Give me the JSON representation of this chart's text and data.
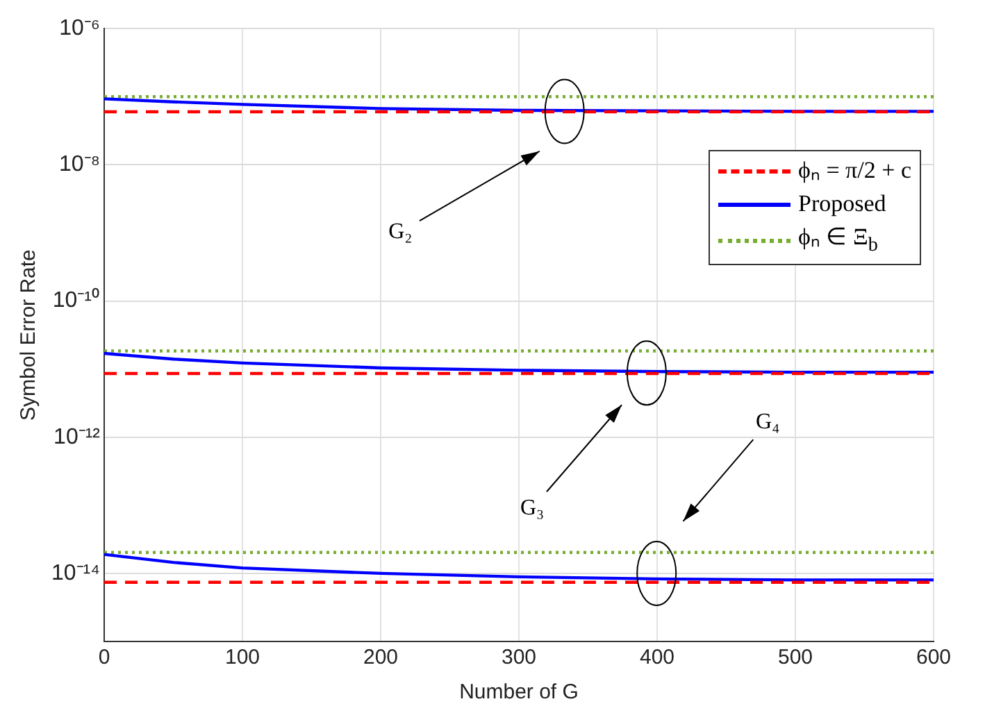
{
  "chart_data": {
    "type": "line",
    "xlabel": "Number of G",
    "ylabel": "Symbol Error Rate",
    "xlim": [
      0,
      600
    ],
    "xticks": [
      0,
      100,
      200,
      300,
      400,
      500,
      600
    ],
    "ylim": [
      1e-15,
      1e-06
    ],
    "log": "y",
    "yticks": [
      {
        "value": 1e-14,
        "label": "10⁻¹⁴"
      },
      {
        "value": 1e-12,
        "label": "10⁻¹²"
      },
      {
        "value": 1e-10,
        "label": "10⁻¹⁰"
      },
      {
        "value": 1e-08,
        "label": "10⁻⁸"
      },
      {
        "value": 1e-06,
        "label": "10⁻⁶"
      }
    ],
    "grid": true,
    "legend": "top right",
    "marker": "none",
    "series": [
      {
        "name": "ϕₙ = π/2 + c",
        "color": "#ff0000",
        "line_style": "dashed",
        "x": [
          0,
          600
        ],
        "values": [
          6e-08,
          6e-08
        ]
      },
      {
        "name": "Proposed",
        "color": "#0000ff",
        "line_style": "solid",
        "x": [
          0,
          50,
          100,
          200,
          300,
          400,
          500,
          600
        ],
        "values": [
          9.3e-08,
          8.4e-08,
          7.7e-08,
          6.7e-08,
          6.3e-08,
          6.2e-08,
          6.1e-08,
          6.1e-08
        ]
      },
      {
        "name": "ϕₙ ∈ Ξ$_{b}$",
        "color": "#77ac30",
        "line_style": "dotted",
        "x": [
          0,
          600
        ],
        "values": [
          1e-07,
          1e-07
        ]
      },
      {
        "color": "#ff0000",
        "line_style": "dashed",
        "x": [
          0,
          600
        ],
        "values": [
          8.6e-12,
          8.6e-12
        ]
      },
      {
        "color": "#0000ff",
        "line_style": "solid",
        "x": [
          0,
          50,
          100,
          200,
          300,
          400,
          500,
          600
        ],
        "values": [
          1.7e-11,
          1.4e-11,
          1.23e-11,
          1.04e-11,
          9.6e-12,
          9.2e-12,
          9e-12,
          9e-12
        ]
      },
      {
        "color": "#77ac30",
        "line_style": "dotted",
        "x": [
          0,
          600
        ],
        "values": [
          1.85e-11,
          1.85e-11
        ]
      },
      {
        "color": "#ff0000",
        "line_style": "dashed",
        "x": [
          0,
          600
        ],
        "values": [
          7.4e-15,
          7.4e-15
        ]
      },
      {
        "color": "#0000ff",
        "line_style": "solid",
        "x": [
          0,
          50,
          100,
          200,
          300,
          400,
          500,
          600
        ],
        "values": [
          1.9e-14,
          1.45e-14,
          1.2e-14,
          1e-14,
          8.9e-15,
          8.3e-15,
          8e-15,
          8e-15
        ]
      },
      {
        "color": "#77ac30",
        "line_style": "dotted",
        "x": [
          0,
          600
        ],
        "values": [
          2.03e-14,
          2.03e-14
        ]
      }
    ],
    "annotations": [
      "G₂",
      "G₃",
      "G₄"
    ]
  }
}
